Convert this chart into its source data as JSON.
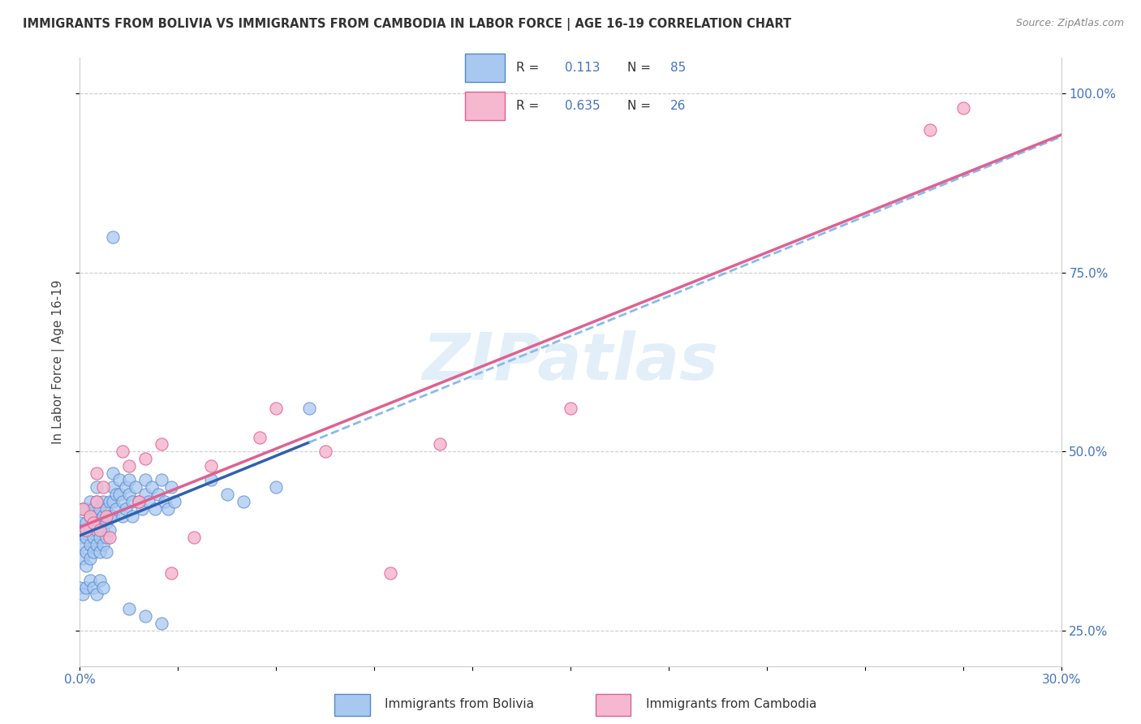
{
  "title": "IMMIGRANTS FROM BOLIVIA VS IMMIGRANTS FROM CAMBODIA IN LABOR FORCE | AGE 16-19 CORRELATION CHART",
  "source_text": "Source: ZipAtlas.com",
  "ylabel": "In Labor Force | Age 16-19",
  "xlim": [
    0.0,
    0.3
  ],
  "ylim": [
    0.2,
    1.05
  ],
  "yticks": [
    0.25,
    0.5,
    0.75,
    1.0
  ],
  "ytick_labels": [
    "25.0%",
    "50.0%",
    "75.0%",
    "100.0%"
  ],
  "bolivia_color": "#a8c8f0",
  "bolivia_edge_color": "#5588cc",
  "cambodia_color": "#f5b8ce",
  "cambodia_edge_color": "#e06090",
  "bolivia_trend_solid_color": "#3060b0",
  "bolivia_trend_dash_color": "#88bbee",
  "cambodia_trend_color": "#e06090",
  "watermark": "ZIPatlas",
  "bolivia_R": "0.113",
  "bolivia_N": "85",
  "cambodia_R": "0.635",
  "cambodia_N": "26"
}
